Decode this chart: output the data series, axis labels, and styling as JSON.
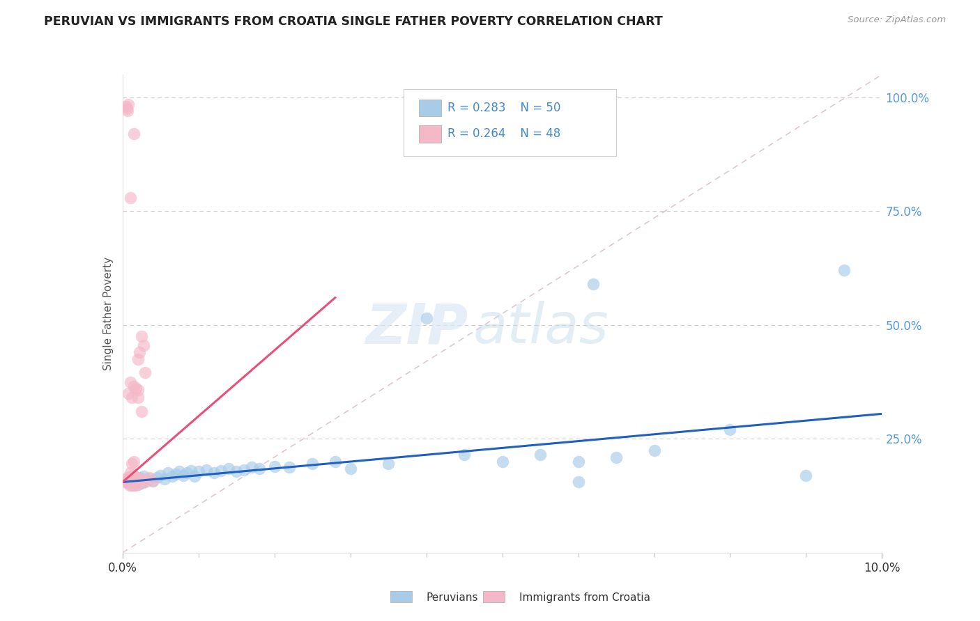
{
  "title": "PERUVIAN VS IMMIGRANTS FROM CROATIA SINGLE FATHER POVERTY CORRELATION CHART",
  "source": "Source: ZipAtlas.com",
  "ylabel": "Single Father Poverty",
  "blue_color": "#a8cce8",
  "pink_color": "#f4b8c8",
  "trend_blue_color": "#2060c0",
  "trend_pink_color": "#e8507a",
  "diag_color": "#ddc8d0",
  "legend_box_color": "#e8e8ee",
  "legend_text_color": "#4488cc",
  "ytick_color": "#5599dd",
  "blue_points": [
    [
      0.0008,
      0.155
    ],
    [
      0.001,
      0.16
    ],
    [
      0.0012,
      0.148
    ],
    [
      0.0015,
      0.162
    ],
    [
      0.0018,
      0.158
    ],
    [
      0.002,
      0.15
    ],
    [
      0.0022,
      0.165
    ],
    [
      0.0025,
      0.152
    ],
    [
      0.0028,
      0.168
    ],
    [
      0.003,
      0.155
    ],
    [
      0.0035,
      0.162
    ],
    [
      0.004,
      0.158
    ],
    [
      0.0045,
      0.165
    ],
    [
      0.005,
      0.17
    ],
    [
      0.0055,
      0.162
    ],
    [
      0.006,
      0.175
    ],
    [
      0.0065,
      0.168
    ],
    [
      0.007,
      0.172
    ],
    [
      0.0075,
      0.178
    ],
    [
      0.008,
      0.17
    ],
    [
      0.0085,
      0.175
    ],
    [
      0.009,
      0.18
    ],
    [
      0.0095,
      0.168
    ],
    [
      0.01,
      0.178
    ],
    [
      0.011,
      0.182
    ],
    [
      0.012,
      0.175
    ],
    [
      0.013,
      0.18
    ],
    [
      0.014,
      0.185
    ],
    [
      0.015,
      0.178
    ],
    [
      0.016,
      0.182
    ],
    [
      0.017,
      0.188
    ],
    [
      0.018,
      0.185
    ],
    [
      0.02,
      0.19
    ],
    [
      0.022,
      0.188
    ],
    [
      0.025,
      0.195
    ],
    [
      0.028,
      0.2
    ],
    [
      0.03,
      0.185
    ],
    [
      0.035,
      0.195
    ],
    [
      0.04,
      0.515
    ],
    [
      0.045,
      0.215
    ],
    [
      0.05,
      0.2
    ],
    [
      0.055,
      0.215
    ],
    [
      0.06,
      0.2
    ],
    [
      0.06,
      0.155
    ],
    [
      0.062,
      0.59
    ],
    [
      0.065,
      0.21
    ],
    [
      0.07,
      0.225
    ],
    [
      0.08,
      0.27
    ],
    [
      0.09,
      0.17
    ],
    [
      0.095,
      0.62
    ]
  ],
  "pink_points": [
    [
      0.0003,
      0.155
    ],
    [
      0.0005,
      0.162
    ],
    [
      0.0006,
      0.158
    ],
    [
      0.0007,
      0.165
    ],
    [
      0.0008,
      0.152
    ],
    [
      0.0009,
      0.148
    ],
    [
      0.001,
      0.155
    ],
    [
      0.001,
      0.16
    ],
    [
      0.0011,
      0.168
    ],
    [
      0.0012,
      0.155
    ],
    [
      0.0013,
      0.162
    ],
    [
      0.0014,
      0.158
    ],
    [
      0.0015,
      0.148
    ],
    [
      0.0015,
      0.17
    ],
    [
      0.0016,
      0.162
    ],
    [
      0.0017,
      0.155
    ],
    [
      0.0018,
      0.148
    ],
    [
      0.0019,
      0.165
    ],
    [
      0.002,
      0.16
    ],
    [
      0.002,
      0.358
    ],
    [
      0.0022,
      0.155
    ],
    [
      0.0025,
      0.162
    ],
    [
      0.0025,
      0.31
    ],
    [
      0.0028,
      0.155
    ],
    [
      0.003,
      0.158
    ],
    [
      0.003,
      0.395
    ],
    [
      0.0035,
      0.165
    ],
    [
      0.004,
      0.158
    ],
    [
      0.0005,
      0.98
    ],
    [
      0.0006,
      0.975
    ],
    [
      0.0007,
      0.97
    ],
    [
      0.0008,
      0.985
    ],
    [
      0.001,
      0.78
    ],
    [
      0.0015,
      0.92
    ],
    [
      0.0008,
      0.35
    ],
    [
      0.001,
      0.375
    ],
    [
      0.0012,
      0.34
    ],
    [
      0.0015,
      0.365
    ],
    [
      0.0018,
      0.36
    ],
    [
      0.002,
      0.34
    ],
    [
      0.002,
      0.425
    ],
    [
      0.0025,
      0.475
    ],
    [
      0.0028,
      0.455
    ],
    [
      0.0022,
      0.44
    ],
    [
      0.0015,
      0.2
    ],
    [
      0.0012,
      0.195
    ],
    [
      0.001,
      0.175
    ],
    [
      0.002,
      0.155
    ]
  ],
  "blue_trend_x": [
    0.0,
    0.1
  ],
  "blue_trend_y": [
    0.155,
    0.305
  ],
  "pink_trend_x": [
    0.0,
    0.028
  ],
  "pink_trend_y": [
    0.155,
    0.56
  ],
  "xlim": [
    0.0,
    0.1
  ],
  "ylim": [
    0.0,
    1.05
  ],
  "yticks": [
    0.25,
    0.5,
    0.75,
    1.0
  ],
  "ytick_labels": [
    "25.0%",
    "50.0%",
    "75.0%",
    "100.0%"
  ],
  "watermark_zip": "ZIP",
  "watermark_atlas": "atlas",
  "legend_r1": "R = 0.283",
  "legend_n1": "N = 50",
  "legend_r2": "R = 0.264",
  "legend_n2": "N = 48",
  "bottom_label1": "Peruvians",
  "bottom_label2": "Immigrants from Croatia"
}
